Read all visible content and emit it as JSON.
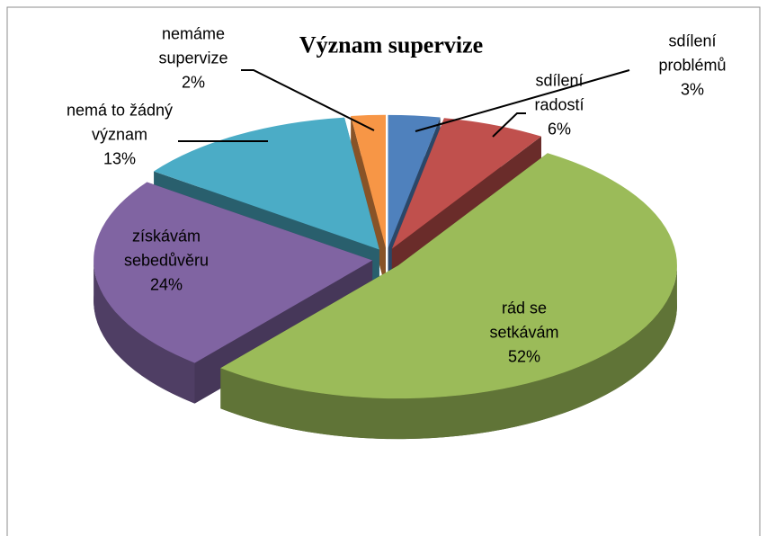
{
  "chart_data": {
    "type": "pie",
    "title": "Význam supervize",
    "categories": [
      "sdílení problémů",
      "sdílení radostí",
      "rád se setkávám",
      "získávám sebedůvěru",
      "nemá to žádný význam",
      "nemáme supervize"
    ],
    "values": [
      3,
      6,
      52,
      24,
      13,
      2
    ],
    "value_labels": [
      "3%",
      "6%",
      "52%",
      "24%",
      "13%",
      "2%"
    ],
    "colors": [
      "#4f81bd",
      "#c0504d",
      "#9bbb59",
      "#8064a2",
      "#4bacc6",
      "#f79646"
    ]
  }
}
